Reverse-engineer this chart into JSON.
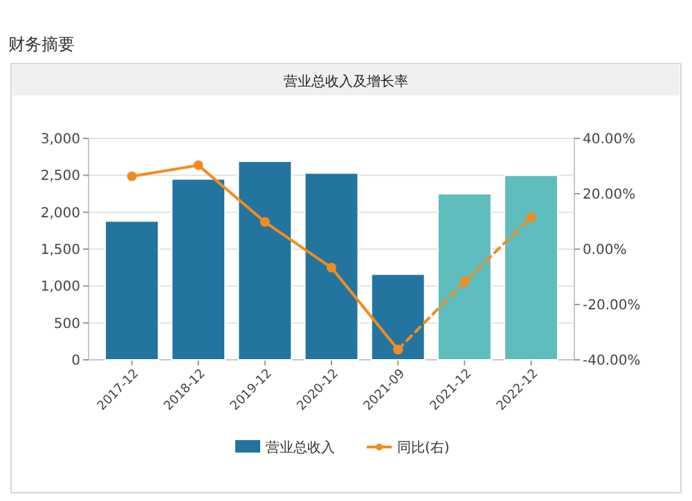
{
  "chart_data": {
    "type": "bar",
    "title": "财务摘要",
    "subtitle": "营业总收入及增长率",
    "categories": [
      "2017-12",
      "2018-12",
      "2019-12",
      "2020-12",
      "2021-09",
      "2021-12",
      "2022-12"
    ],
    "series": [
      {
        "name": "营业总收入",
        "colors": [
          "#2474a0",
          "#2474a0",
          "#2474a0",
          "#2474a0",
          "#2474a0",
          "#5fbdbd",
          "#5fbdbd"
        ],
        "values": [
          1880,
          2450,
          2690,
          2530,
          1160,
          2250,
          2500
        ]
      },
      {
        "name": "同比(右)",
        "type": "line",
        "axis": "y2",
        "color": "#f28c1e",
        "line_style": "solid",
        "marker": "circle",
        "values": [
          26.3,
          30.3,
          9.8,
          -6.7,
          -36.3,
          null,
          null
        ]
      },
      {
        "type": "line",
        "axis": "y2",
        "color": "#f28c1e",
        "line_style": "dashed",
        "marker": "circle",
        "values": [
          null,
          null,
          null,
          null,
          -36.3,
          -11.8,
          11.5
        ]
      }
    ],
    "ylim": [
      0,
      3000
    ],
    "yticks": [
      0,
      {
        "value": 500,
        "label": "500"
      },
      {
        "value": 1000,
        "label": "1,000"
      },
      {
        "value": 1500,
        "label": "1,500"
      },
      {
        "value": 2000,
        "label": "2,000"
      },
      {
        "value": 2500,
        "label": "2,500"
      },
      {
        "value": 3000,
        "label": "3,000"
      }
    ],
    "y2lim": [
      -40,
      40
    ],
    "y2ticks": [
      {
        "value": -40,
        "label": "-40.00%"
      },
      {
        "value": -20,
        "label": "-20.00%"
      },
      {
        "value": 0,
        "label": "0.00%"
      },
      {
        "value": 20,
        "label": "20.00%"
      },
      {
        "value": 40,
        "label": "40.00%"
      }
    ],
    "grid": "y",
    "legend": "bottom"
  }
}
